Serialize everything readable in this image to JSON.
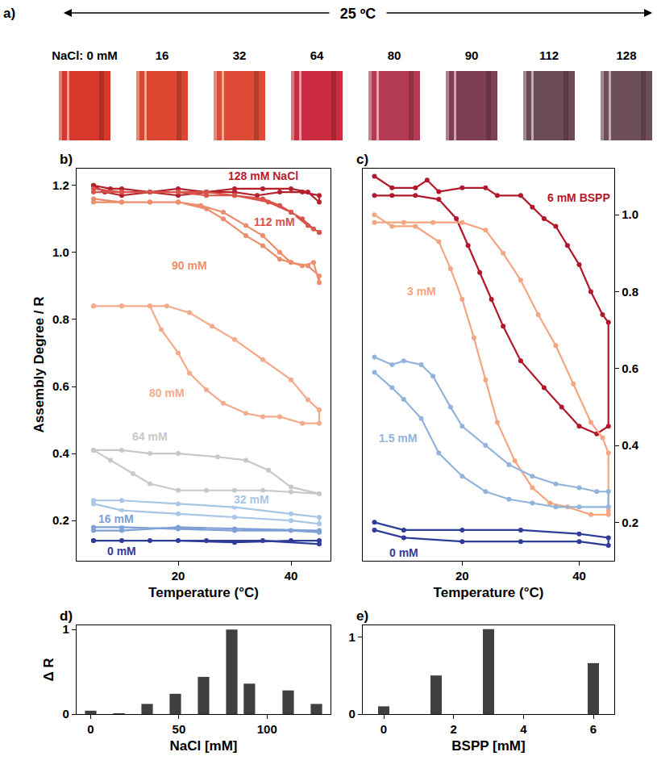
{
  "panel_a": {
    "label": "a)",
    "header": "25 ºC",
    "vials": [
      {
        "label": "NaCl: 0 mM",
        "color": "#d8382c"
      },
      {
        "label": "16",
        "color": "#dc4631"
      },
      {
        "label": "32",
        "color": "#dd4b37"
      },
      {
        "label": "64",
        "color": "#cc2c41"
      },
      {
        "label": "80",
        "color": "#b43b53"
      },
      {
        "label": "90",
        "color": "#7f3f53"
      },
      {
        "label": "112",
        "color": "#6b4a55"
      },
      {
        "label": "128",
        "color": "#6e4d5a"
      }
    ]
  },
  "chart_data": [
    {
      "title": "b)",
      "type": "line",
      "x_label": "Temperature (°C)",
      "y_label": "Assembly Degree / R",
      "xlim": [
        2,
        47
      ],
      "xticks": [
        20,
        40
      ],
      "ylim": [
        0.08,
        1.25
      ],
      "yticks": [
        0.2,
        0.4,
        0.6,
        0.8,
        {
          "value": 1.0,
          "label": "1.0"
        },
        1.2
      ],
      "grid": false,
      "marker": "circle",
      "line_style": "solid",
      "series": [
        {
          "name": "128 mM NaCl",
          "color": "#b5212b",
          "x": [
            5,
            8,
            10,
            15,
            20,
            25,
            30,
            35,
            40,
            43,
            45,
            45,
            42,
            38,
            34,
            30,
            25,
            20,
            15,
            10,
            7,
            5
          ],
          "y": [
            1.2,
            1.19,
            1.19,
            1.18,
            1.19,
            1.18,
            1.19,
            1.19,
            1.19,
            1.18,
            1.15,
            1.17,
            1.18,
            1.18,
            1.17,
            1.18,
            1.18,
            1.17,
            1.18,
            1.17,
            1.18,
            1.2
          ]
        },
        {
          "name": "112 mM",
          "color": "#d9534a",
          "x": [
            5,
            10,
            15,
            20,
            25,
            30,
            35,
            38,
            40,
            42,
            44,
            45,
            45,
            43,
            40,
            36,
            30,
            25,
            20,
            15,
            10,
            5
          ],
          "y": [
            1.19,
            1.18,
            1.18,
            1.18,
            1.17,
            1.17,
            1.16,
            1.14,
            1.12,
            1.1,
            1.07,
            1.06,
            1.06,
            1.08,
            1.12,
            1.15,
            1.17,
            1.18,
            1.18,
            1.18,
            1.18,
            1.18
          ]
        },
        {
          "name": "90 mM",
          "color": "#ec8d6c",
          "x": [
            5,
            10,
            15,
            20,
            25,
            28,
            32,
            35,
            38,
            40,
            43,
            45,
            45,
            44,
            42,
            40,
            38,
            35,
            32,
            28,
            24,
            20,
            15,
            10,
            5
          ],
          "y": [
            1.15,
            1.15,
            1.15,
            1.15,
            1.13,
            1.1,
            1.05,
            1.02,
            0.98,
            0.97,
            0.96,
            0.93,
            0.91,
            0.97,
            0.96,
            0.97,
            1.0,
            1.05,
            1.08,
            1.12,
            1.14,
            1.15,
            1.15,
            1.15,
            1.16
          ]
        },
        {
          "name": "80 mM",
          "color": "#f4ab8c",
          "x": [
            5,
            10,
            15,
            18,
            22,
            26,
            30,
            35,
            40,
            43,
            45,
            45,
            42,
            38,
            35,
            32,
            28,
            25,
            22,
            20,
            17,
            15,
            10,
            5
          ],
          "y": [
            0.84,
            0.84,
            0.84,
            0.84,
            0.82,
            0.78,
            0.74,
            0.68,
            0.62,
            0.56,
            0.53,
            0.49,
            0.49,
            0.51,
            0.51,
            0.52,
            0.55,
            0.59,
            0.64,
            0.7,
            0.77,
            0.84,
            0.84,
            0.84
          ]
        },
        {
          "name": "64 mM",
          "color": "#c8c8c8",
          "x": [
            5,
            10,
            15,
            20,
            27,
            32,
            36,
            40,
            45,
            45,
            40,
            35,
            30,
            25,
            20,
            15,
            12,
            8,
            5
          ],
          "y": [
            0.41,
            0.41,
            0.4,
            0.4,
            0.39,
            0.38,
            0.35,
            0.3,
            0.28,
            0.28,
            0.285,
            0.29,
            0.29,
            0.29,
            0.29,
            0.31,
            0.34,
            0.38,
            0.41
          ]
        },
        {
          "name": "32 mM",
          "color": "#a9c6e6",
          "x": [
            5,
            10,
            20,
            30,
            40,
            45,
            45,
            40,
            30,
            20,
            10,
            5
          ],
          "y": [
            0.26,
            0.26,
            0.25,
            0.24,
            0.22,
            0.21,
            0.19,
            0.2,
            0.21,
            0.22,
            0.23,
            0.25
          ]
        },
        {
          "name": "16 mM",
          "color": "#7ea0d4",
          "x": [
            5,
            10,
            20,
            30,
            40,
            45,
            45,
            30,
            20,
            10,
            5
          ],
          "y": [
            0.18,
            0.18,
            0.175,
            0.17,
            0.17,
            0.165,
            0.17,
            0.175,
            0.18,
            0.17,
            0.17
          ]
        },
        {
          "name": "0 mM",
          "color": "#2e3d99",
          "x": [
            5,
            10,
            20,
            30,
            40,
            45,
            45,
            35,
            25,
            15,
            5
          ],
          "y": [
            0.14,
            0.14,
            0.14,
            0.135,
            0.14,
            0.14,
            0.13,
            0.14,
            0.14,
            0.14,
            0.14
          ]
        }
      ]
    },
    {
      "title": "c)",
      "type": "line",
      "x_label": "Temperature (°C)",
      "xlim": [
        3,
        46
      ],
      "xticks": [
        20,
        40
      ],
      "ylim": [
        0.1,
        1.12
      ],
      "yticks": [
        0.2,
        0.4,
        0.6,
        0.8,
        {
          "value": 1.0,
          "label": "1.0"
        }
      ],
      "grid": false,
      "marker": "circle",
      "line_style": "solid",
      "series": [
        {
          "name": "6 mM BSPP",
          "color": "#b2182b",
          "x": [
            5,
            8,
            12,
            14,
            16,
            20,
            24,
            26,
            30,
            32,
            34,
            36,
            38,
            40,
            42,
            44,
            45,
            45,
            43,
            40,
            37,
            34,
            30,
            27,
            25,
            23,
            21,
            19,
            16,
            12,
            8,
            5
          ],
          "y": [
            1.1,
            1.07,
            1.07,
            1.09,
            1.06,
            1.07,
            1.07,
            1.05,
            1.05,
            1.02,
            0.99,
            0.97,
            0.92,
            0.87,
            0.8,
            0.74,
            0.72,
            0.45,
            0.43,
            0.45,
            0.5,
            0.55,
            0.62,
            0.71,
            0.78,
            0.85,
            0.92,
            0.99,
            1.04,
            1.05,
            1.05,
            1.05
          ]
        },
        {
          "name": "3 mM",
          "color": "#f4a582",
          "x": [
            5,
            10,
            15,
            20,
            24,
            27,
            30,
            33,
            36,
            39,
            42,
            44,
            45,
            45,
            45,
            42,
            38,
            35,
            32,
            29,
            26,
            24,
            22,
            20,
            18,
            16,
            12,
            8,
            5
          ],
          "y": [
            0.98,
            0.98,
            0.98,
            0.98,
            0.96,
            0.9,
            0.83,
            0.74,
            0.66,
            0.56,
            0.46,
            0.42,
            0.38,
            0.23,
            0.22,
            0.22,
            0.24,
            0.25,
            0.29,
            0.36,
            0.46,
            0.57,
            0.68,
            0.78,
            0.86,
            0.93,
            0.97,
            0.97,
            1.0
          ]
        },
        {
          "name": "1.5 mM",
          "color": "#92b4dc",
          "x": [
            5,
            8,
            10,
            13,
            15,
            18,
            20,
            24,
            28,
            32,
            36,
            40,
            43,
            45,
            45,
            40,
            36,
            32,
            28,
            24,
            20,
            16,
            13,
            10,
            8,
            5
          ],
          "y": [
            0.63,
            0.61,
            0.62,
            0.61,
            0.58,
            0.5,
            0.45,
            0.4,
            0.35,
            0.32,
            0.3,
            0.29,
            0.28,
            0.28,
            0.24,
            0.24,
            0.24,
            0.25,
            0.26,
            0.28,
            0.32,
            0.38,
            0.47,
            0.52,
            0.55,
            0.59
          ]
        },
        {
          "name": "0 mM",
          "color": "#2e3d99",
          "x": [
            5,
            10,
            20,
            30,
            40,
            45,
            45,
            40,
            30,
            20,
            10,
            5
          ],
          "y": [
            0.2,
            0.18,
            0.18,
            0.18,
            0.17,
            0.16,
            0.14,
            0.15,
            0.15,
            0.15,
            0.16,
            0.18
          ]
        }
      ]
    },
    {
      "title": "d)",
      "type": "bar",
      "x_label": "NaCl [mM]",
      "y_label": "Δ R",
      "x": [
        0,
        16,
        32,
        48,
        64,
        80,
        90,
        112,
        128
      ],
      "values": [
        0.04,
        0.01,
        0.12,
        0.24,
        0.44,
        1.0,
        0.36,
        0.28,
        0.12
      ],
      "color": "#404040",
      "grid": false,
      "xlim": [
        -8,
        136
      ],
      "xticks": [
        0,
        50,
        100
      ],
      "ylim": [
        0,
        1.05
      ],
      "yticks": [
        0,
        1
      ]
    },
    {
      "title": "e)",
      "type": "bar",
      "x_label": "BSPP [mM]",
      "x": [
        0,
        1.5,
        3,
        6
      ],
      "values": [
        0.1,
        0.5,
        1.1,
        0.66
      ],
      "color": "#404040",
      "grid": false,
      "xlim": [
        -0.6,
        6.6
      ],
      "xticks": [
        0,
        2,
        4,
        6
      ],
      "ylim": [
        0,
        1.15
      ],
      "yticks": [
        0,
        1
      ]
    }
  ]
}
